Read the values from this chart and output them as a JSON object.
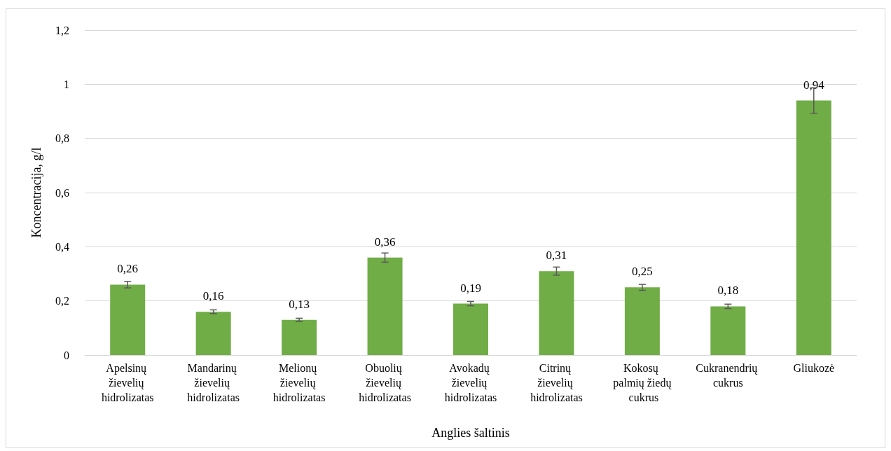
{
  "chart_data": {
    "type": "bar",
    "xlabel": "Anglies šaltinis",
    "ylabel": "Koncentracija, g/l",
    "categories": [
      "Apelsinų žievelių hidrolizatas",
      "Mandarinų žievelių hidrolizatas",
      "Melionų žievelių hidrolizatas",
      "Obuolių žievelių hidrolizatas",
      "Avokadų žievelių hidrolizatas",
      "Citrinų žievelių hidrolizatas",
      "Kokosų palmių žiedų cukrus",
      "Cukranendrių cukrus",
      "Gliukozė"
    ],
    "values": [
      0.26,
      0.16,
      0.13,
      0.36,
      0.19,
      0.31,
      0.25,
      0.18,
      0.94
    ],
    "value_labels": [
      "0,26",
      "0,16",
      "0,13",
      "0,36",
      "0,19",
      "0,31",
      "0,25",
      "0,18",
      "0,94"
    ],
    "errors": [
      0.012,
      0.007,
      0.006,
      0.017,
      0.008,
      0.015,
      0.011,
      0.008,
      0.047
    ],
    "color": "#70ad47",
    "ylim": [
      0,
      1.2
    ],
    "yticks": [
      0,
      {
        "value": 0.2,
        "label": "0,2"
      },
      {
        "value": 0.4,
        "label": "0,4"
      },
      {
        "value": 0.6,
        "label": "0,6"
      },
      {
        "value": 0.8,
        "label": "0,8"
      },
      1,
      {
        "value": 1.2,
        "label": "1,2"
      }
    ],
    "grid": "y"
  }
}
